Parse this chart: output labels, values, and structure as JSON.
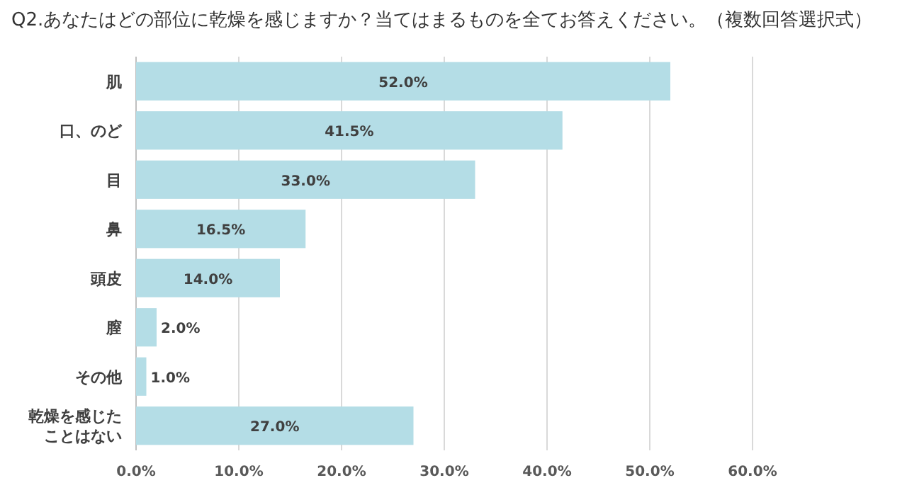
{
  "chart_data": {
    "type": "bar",
    "orientation": "horizontal",
    "title": "Q2.あなたはどの部位に乾燥を感じますか？当てはまるものを全てお答えください。（複数回答選択式）",
    "categories": [
      "肌",
      "口、のど",
      "目",
      "鼻",
      "頭皮",
      "膣",
      "その他",
      "乾燥を感じたことはない"
    ],
    "values": [
      52.0,
      41.5,
      33.0,
      16.5,
      14.0,
      2.0,
      1.0,
      27.0
    ],
    "value_labels": [
      "52.0%",
      "41.5%",
      "33.0%",
      "16.5%",
      "14.0%",
      "2.0%",
      "1.0%",
      "27.0%"
    ],
    "color": "#b4dde6",
    "xlim": [
      0,
      60
    ],
    "xticks": [
      {
        "value": 0,
        "label": "0.0%"
      },
      {
        "value": 10,
        "label": "10.0%"
      },
      {
        "value": 20,
        "label": "20.0%"
      },
      {
        "value": 30,
        "label": "30.0%"
      },
      {
        "value": 40,
        "label": "40.0%"
      },
      {
        "value": 50,
        "label": "50.0%"
      },
      {
        "value": 60,
        "label": "60.0%"
      }
    ],
    "grid": "x"
  }
}
